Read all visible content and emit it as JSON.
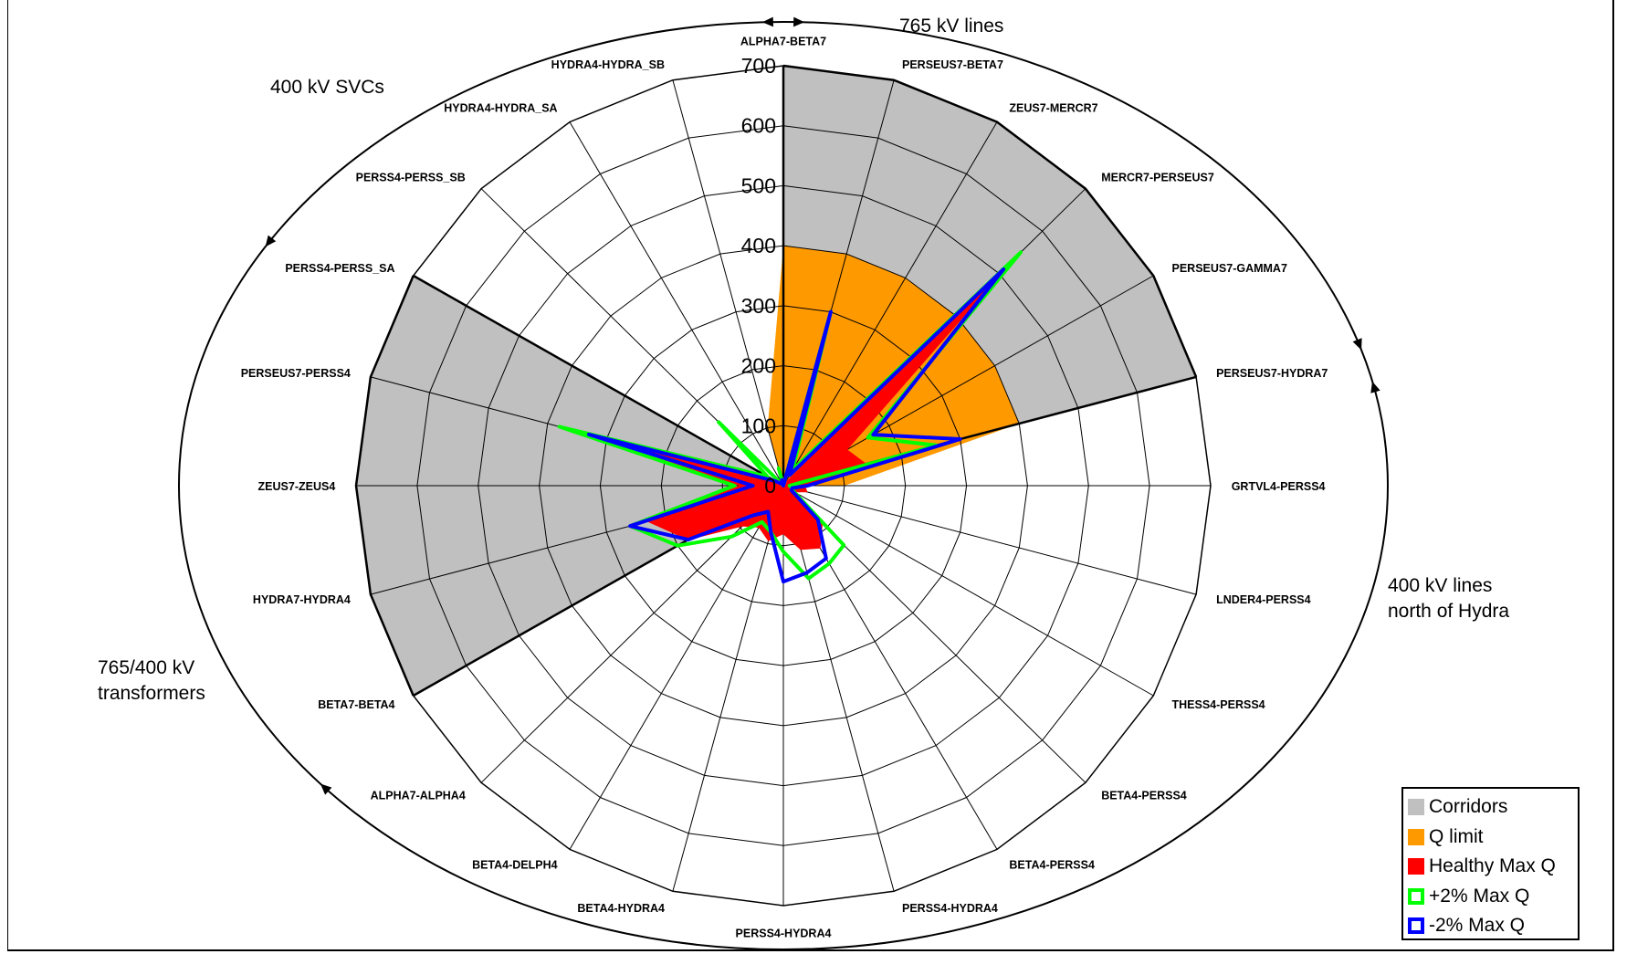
{
  "chart_data": {
    "type": "radar",
    "categories": [
      "ALPHA7-BETA7",
      "PERSEUS7-BETA7",
      "ZEUS7-MERCR7",
      "MERCR7-PERSEUS7",
      "PERSEUS7-GAMMA7",
      "PERSEUS7-HYDRA7",
      "GRTVL4-PERSS4",
      "LNDER4-PERSS4",
      "THESS4-PERSS4",
      "BETA4-PERSS4",
      "BETA4-PERSS4",
      "PERSS4-HYDRA4",
      "PERSS4-HYDRA4",
      "BETA4-HYDRA4",
      "BETA4-DELPH4",
      "ALPHA7-ALPHA4",
      "BETA7-BETA4",
      "HYDRA7-HYDRA4",
      "ZEUS7-ZEUS4",
      "PERSEUS7-PERSS4",
      "PERSS4-PERSS_SA",
      "PERSS4-PERSS_SB",
      "HYDRA4-HYDRA_SA",
      "HYDRA4-HYDRA_SB"
    ],
    "ticks": [
      0,
      100,
      200,
      300,
      400,
      500,
      600,
      700
    ],
    "rmax": 700,
    "corridors": [
      {
        "start": 0,
        "end": 5,
        "value": 700
      },
      {
        "start": 16,
        "end": 20,
        "value": 700
      }
    ],
    "series": [
      {
        "name": "Q limit",
        "kind": "area",
        "color": "#ff9900",
        "values": [
          400,
          400,
          400,
          400,
          400,
          400,
          100,
          0,
          0,
          0,
          0,
          0,
          0,
          0,
          0,
          0,
          0,
          0,
          0,
          0,
          0,
          0,
          0,
          100
        ]
      },
      {
        "name": "Healthy Max Q",
        "kind": "area",
        "color": "#ff0000",
        "values": [
          0,
          280,
          5,
          530,
          120,
          140,
          35,
          40,
          20,
          90,
          120,
          110,
          80,
          95,
          80,
          95,
          180,
          230,
          70,
          320,
          10,
          5,
          5,
          5
        ]
      },
      {
        "name": "+2% Max Q",
        "kind": "line",
        "color": "#00ff00",
        "values": [
          0,
          300,
          30,
          550,
          160,
          260,
          10,
          15,
          20,
          140,
          150,
          160,
          110,
          80,
          70,
          120,
          200,
          260,
          80,
          380,
          30,
          150,
          0,
          30
        ]
      },
      {
        "name": "-2% Max Q",
        "kind": "line",
        "color": "#0000ff",
        "values": [
          0,
          300,
          20,
          510,
          170,
          300,
          40,
          15,
          15,
          80,
          140,
          150,
          160,
          80,
          50,
          70,
          180,
          260,
          50,
          330,
          15,
          5,
          5,
          10
        ]
      }
    ],
    "legend": {
      "position": "bottom-right",
      "entries": [
        {
          "label": "Corridors",
          "color": "#c0c0c0",
          "style": "fill"
        },
        {
          "label": "Q limit",
          "color": "#ff9900",
          "style": "fill"
        },
        {
          "label": "Healthy Max Q",
          "color": "#ff0000",
          "style": "fill"
        },
        {
          "label": "+2% Max Q",
          "color": "#00ff00",
          "style": "outline"
        },
        {
          "label": "-2% Max Q",
          "color": "#0000ff",
          "style": "outline"
        }
      ]
    },
    "group_labels": [
      "765 kV lines",
      "400 kV lines\nnorth of Hydra",
      "765/400 kV\ntransformers",
      "400 kV SVCs"
    ]
  }
}
